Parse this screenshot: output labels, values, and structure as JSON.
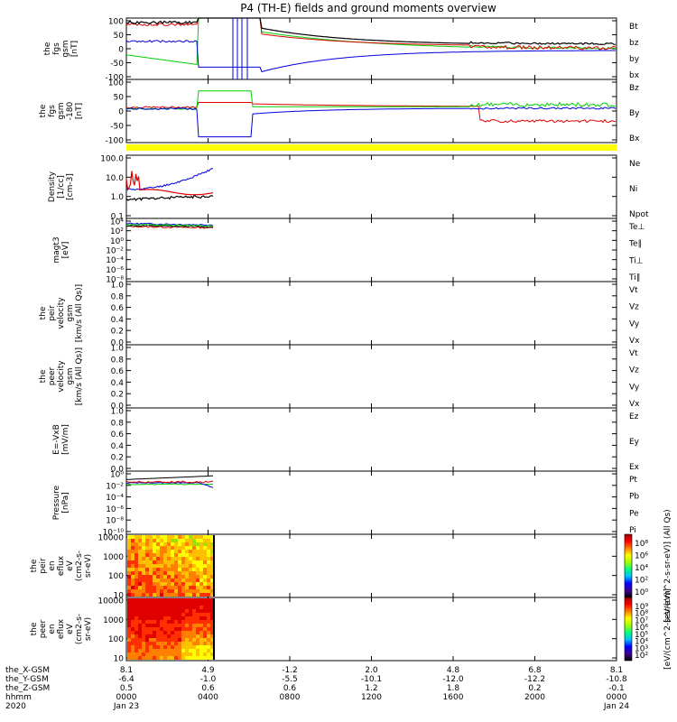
{
  "title": "P4 (TH-E) fields and ground moments overview",
  "colors": {
    "black": "#000000",
    "red": "#e00000",
    "green": "#00d000",
    "blue": "#0000e0",
    "yellow": "#ffff00"
  },
  "chart_data": [
    {
      "type": "line",
      "ylabel": [
        "the",
        "fgs",
        "gsm",
        "[nT]"
      ],
      "yticks": [
        "100",
        "50",
        "0",
        "-50",
        "-100"
      ],
      "ylim": [
        -100,
        100
      ],
      "legend": [
        {
          "name": "Bt",
          "color": "black"
        },
        {
          "name": "bz",
          "color": "red"
        },
        {
          "name": "by",
          "color": "green"
        },
        {
          "name": "bx",
          "color": "blue"
        }
      ]
    },
    {
      "type": "line",
      "ylabel": [
        "the",
        "fgs",
        "gsm",
        "-180",
        "[nT]"
      ],
      "yticks": [
        "100",
        "50",
        "0",
        "-50",
        "-100"
      ],
      "ylim": [
        -120,
        100
      ],
      "legend": [
        {
          "name": "Bz",
          "color": "red"
        },
        {
          "name": "By",
          "color": "green"
        },
        {
          "name": "Bx",
          "color": "blue"
        }
      ]
    },
    {
      "type": "line",
      "ylabel": [
        "Density",
        "[1/cc]",
        "[cm-3]"
      ],
      "yticks": [
        "100.0",
        "10.0",
        "1.0",
        "0.1"
      ],
      "ylim": [
        0.05,
        200
      ],
      "log": true,
      "legend": [
        {
          "name": "Ne",
          "color": "red"
        },
        {
          "name": "Ni",
          "color": "black"
        },
        {
          "name": "Npot",
          "color": "blue"
        }
      ]
    },
    {
      "type": "line",
      "ylabel": [
        "magt3",
        "[eV]"
      ],
      "yticks": [
        "10⁴",
        "10²",
        "10⁰",
        "10⁻²",
        "10⁻⁴",
        "10⁻⁶",
        "10⁻⁸"
      ],
      "ylim": [
        1e-09,
        10000.0
      ],
      "log": true,
      "legend": [
        {
          "name": "Te⊥",
          "color": "red"
        },
        {
          "name": "Te∥",
          "color": "black"
        },
        {
          "name": "Ti⊥",
          "color": "blue"
        },
        {
          "name": "Ti∥",
          "color": "green"
        }
      ]
    },
    {
      "type": "line",
      "ylabel": [
        "the",
        "peir",
        "velocity",
        "gsm",
        "[km/s (All Qs)]"
      ],
      "yticks": [
        "1.0",
        "0.8",
        "0.6",
        "0.4",
        "0.2",
        "0.0"
      ],
      "ylim": [
        0,
        1
      ],
      "legend": [
        {
          "name": "Vt",
          "color": "black"
        },
        {
          "name": "Vz",
          "color": "red"
        },
        {
          "name": "Vy",
          "color": "green"
        },
        {
          "name": "Vx",
          "color": "blue"
        }
      ]
    },
    {
      "type": "line",
      "ylabel": [
        "the",
        "peer",
        "velocity",
        "gsm",
        "[km/s (All Qs)]"
      ],
      "yticks": [
        "1.0",
        "0.8",
        "0.6",
        "0.4",
        "0.2",
        "0.0"
      ],
      "ylim": [
        0,
        1
      ],
      "legend": [
        {
          "name": "Vt",
          "color": "black"
        },
        {
          "name": "Vz",
          "color": "red"
        },
        {
          "name": "Vy",
          "color": "green"
        },
        {
          "name": "Vx",
          "color": "blue"
        }
      ]
    },
    {
      "type": "line",
      "ylabel": [
        "E=-VxB",
        "[mV/m]"
      ],
      "yticks": [
        "1.0",
        "0.8",
        "0.6",
        "0.4",
        "0.2",
        "0.0"
      ],
      "ylim": [
        0,
        1
      ],
      "legend": [
        {
          "name": "Ez",
          "color": "red"
        },
        {
          "name": "Ey",
          "color": "green"
        },
        {
          "name": "Ex",
          "color": "blue"
        }
      ]
    },
    {
      "type": "line",
      "ylabel": [
        "Pressure",
        "[nPa]"
      ],
      "yticks": [
        "10⁰",
        "10⁻²",
        "10⁻⁴",
        "10⁻⁶",
        "10⁻⁸",
        "10⁻¹⁰"
      ],
      "ylim": [
        1e-11,
        10
      ],
      "log": true,
      "legend": [
        {
          "name": "Pt",
          "color": "black"
        },
        {
          "name": "Pb",
          "color": "red"
        },
        {
          "name": "Pe",
          "color": "green"
        },
        {
          "name": "Pi",
          "color": "blue"
        }
      ]
    },
    {
      "type": "heatmap",
      "ylabel": [
        "the",
        "peir",
        "en",
        "eflux",
        "eV",
        "(cm2-s-",
        "sr-eV)"
      ],
      "yticks": [
        "10000",
        "1000",
        "100",
        "10"
      ],
      "ylim": [
        5,
        30000
      ],
      "log": true,
      "cbar_label": "[eV/(cm^2-s-sr-eV)] (All Qs)",
      "cbar_ticks": [
        "10⁸",
        "10⁶",
        "10⁴",
        "10²",
        "10⁰"
      ]
    },
    {
      "type": "heatmap",
      "ylabel": [
        "the",
        "peer",
        "en",
        "eflux",
        "eV",
        "(cm2-s-",
        "sr-eV)"
      ],
      "yticks": [
        "10000",
        "1000",
        "100",
        "10"
      ],
      "ylim": [
        5,
        30000
      ],
      "log": true,
      "cbar_label": "[eV/(cm^2-s-sr-eV)]",
      "cbar_ticks": [
        "10⁹",
        "10⁸",
        "10⁷",
        "10⁶",
        "10⁵",
        "10⁴",
        "10³",
        "10²"
      ]
    }
  ],
  "xaxis": {
    "row_labels": [
      "the_X-GSM",
      "the_Y-GSM",
      "the_Z-GSM",
      "hhmm",
      "2020"
    ],
    "ticks": [
      {
        "x": "8.1",
        "y": "-6.4",
        "z": "0.5",
        "t": "0000",
        "d": "Jan 23"
      },
      {
        "x": "4.9",
        "y": "-1.0",
        "z": "0.6",
        "t": "0400",
        "d": ""
      },
      {
        "x": "-1.2",
        "y": "-5.5",
        "z": "0.6",
        "t": "0800",
        "d": ""
      },
      {
        "x": "2.0",
        "y": "-10.1",
        "z": "1.2",
        "t": "1200",
        "d": ""
      },
      {
        "x": "4.8",
        "y": "-12.0",
        "z": "1.8",
        "t": "1600",
        "d": ""
      },
      {
        "x": "6.8",
        "y": "-12.2",
        "z": "0.2",
        "t": "2000",
        "d": ""
      },
      {
        "x": "8.1",
        "y": "-10.8",
        "z": "-0.1",
        "t": "0000",
        "d": "Jan 24"
      }
    ]
  }
}
